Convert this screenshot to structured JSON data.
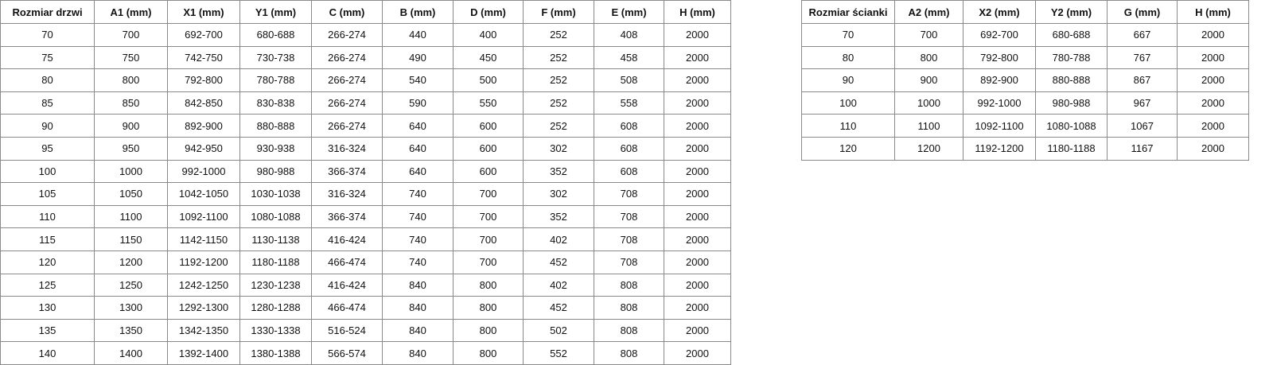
{
  "door_table": {
    "headers": [
      "Rozmiar drzwi",
      "A1 (mm)",
      "X1 (mm)",
      "Y1 (mm)",
      "C (mm)",
      "B (mm)",
      "D (mm)",
      "F (mm)",
      "E (mm)",
      "H (mm)"
    ],
    "rows": [
      [
        "70",
        "700",
        "692-700",
        "680-688",
        "266-274",
        "440",
        "400",
        "252",
        "408",
        "2000"
      ],
      [
        "75",
        "750",
        "742-750",
        "730-738",
        "266-274",
        "490",
        "450",
        "252",
        "458",
        "2000"
      ],
      [
        "80",
        "800",
        "792-800",
        "780-788",
        "266-274",
        "540",
        "500",
        "252",
        "508",
        "2000"
      ],
      [
        "85",
        "850",
        "842-850",
        "830-838",
        "266-274",
        "590",
        "550",
        "252",
        "558",
        "2000"
      ],
      [
        "90",
        "900",
        "892-900",
        "880-888",
        "266-274",
        "640",
        "600",
        "252",
        "608",
        "2000"
      ],
      [
        "95",
        "950",
        "942-950",
        "930-938",
        "316-324",
        "640",
        "600",
        "302",
        "608",
        "2000"
      ],
      [
        "100",
        "1000",
        "992-1000",
        "980-988",
        "366-374",
        "640",
        "600",
        "352",
        "608",
        "2000"
      ],
      [
        "105",
        "1050",
        "1042-1050",
        "1030-1038",
        "316-324",
        "740",
        "700",
        "302",
        "708",
        "2000"
      ],
      [
        "110",
        "1100",
        "1092-1100",
        "1080-1088",
        "366-374",
        "740",
        "700",
        "352",
        "708",
        "2000"
      ],
      [
        "115",
        "1150",
        "1142-1150",
        "1130-1138",
        "416-424",
        "740",
        "700",
        "402",
        "708",
        "2000"
      ],
      [
        "120",
        "1200",
        "1192-1200",
        "1180-1188",
        "466-474",
        "740",
        "700",
        "452",
        "708",
        "2000"
      ],
      [
        "125",
        "1250",
        "1242-1250",
        "1230-1238",
        "416-424",
        "840",
        "800",
        "402",
        "808",
        "2000"
      ],
      [
        "130",
        "1300",
        "1292-1300",
        "1280-1288",
        "466-474",
        "840",
        "800",
        "452",
        "808",
        "2000"
      ],
      [
        "135",
        "1350",
        "1342-1350",
        "1330-1338",
        "516-524",
        "840",
        "800",
        "502",
        "808",
        "2000"
      ],
      [
        "140",
        "1400",
        "1392-1400",
        "1380-1388",
        "566-574",
        "840",
        "800",
        "552",
        "808",
        "2000"
      ]
    ]
  },
  "wall_table": {
    "headers": [
      "Rozmiar ścianki",
      "A2 (mm)",
      "X2 (mm)",
      "Y2 (mm)",
      "G (mm)",
      "H (mm)"
    ],
    "rows": [
      [
        "70",
        "700",
        "692-700",
        "680-688",
        "667",
        "2000"
      ],
      [
        "80",
        "800",
        "792-800",
        "780-788",
        "767",
        "2000"
      ],
      [
        "90",
        "900",
        "892-900",
        "880-888",
        "867",
        "2000"
      ],
      [
        "100",
        "1000",
        "992-1000",
        "980-988",
        "967",
        "2000"
      ],
      [
        "110",
        "1100",
        "1092-1100",
        "1080-1088",
        "1067",
        "2000"
      ],
      [
        "120",
        "1200",
        "1192-1200",
        "1180-1188",
        "1167",
        "2000"
      ]
    ]
  }
}
